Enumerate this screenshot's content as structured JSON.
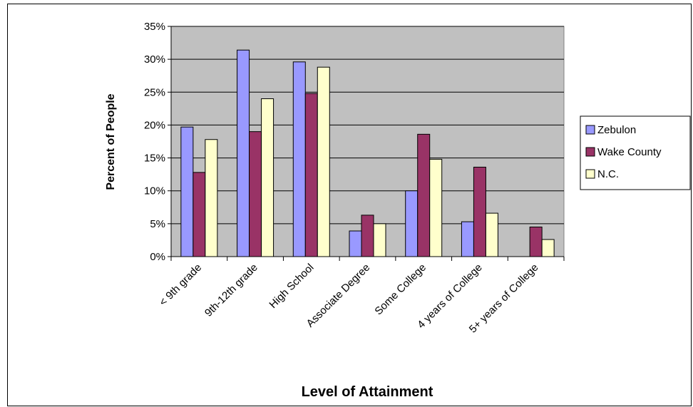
{
  "chart_data": {
    "type": "bar",
    "title": "",
    "xlabel": "Level of Attainment",
    "ylabel": "Percent of People",
    "categories": [
      "< 9th grade",
      "9th-12th grade",
      "High School",
      "Associate Degree",
      "Some College",
      "4 years of College",
      "5+ years of College"
    ],
    "series": [
      {
        "name": "Zebulon",
        "color": "#9999ff",
        "values": [
          19.7,
          31.4,
          29.6,
          3.9,
          10.0,
          5.3,
          0.0
        ]
      },
      {
        "name": "Wake County",
        "color": "#993366",
        "values": [
          12.8,
          19.0,
          24.8,
          6.3,
          18.6,
          13.6,
          4.5
        ]
      },
      {
        "name": "N.C.",
        "color": "#ffffcc",
        "values": [
          17.8,
          24.0,
          28.8,
          5.0,
          14.8,
          6.6,
          2.6
        ]
      }
    ],
    "ylim": [
      0,
      35
    ],
    "yticks": [
      "0%",
      "5%",
      "10%",
      "15%",
      "20%",
      "25%",
      "30%",
      "35%"
    ],
    "plot_background": "#c0c0c0",
    "grid": true,
    "legend": "right"
  }
}
